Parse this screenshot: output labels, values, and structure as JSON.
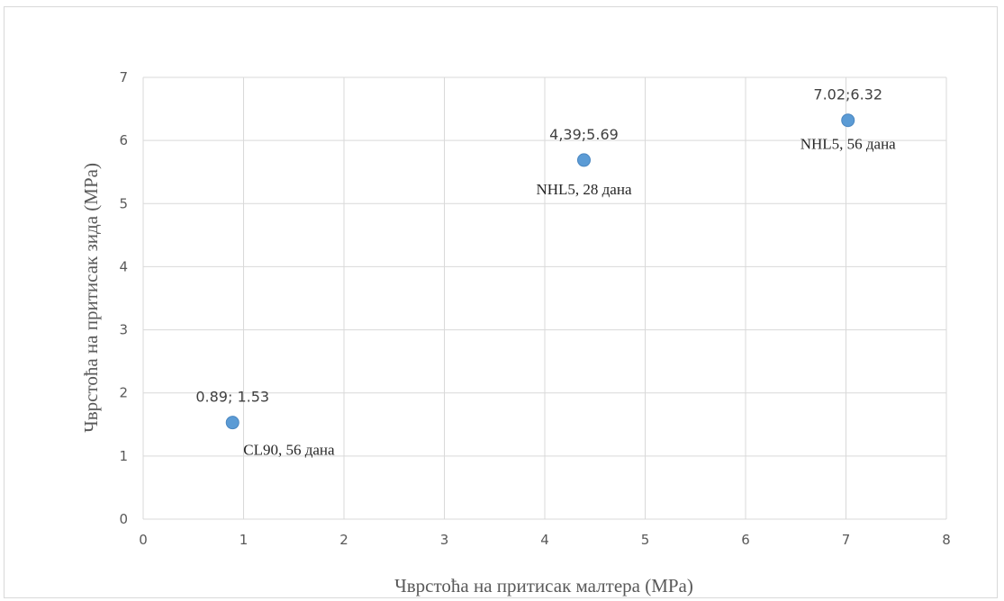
{
  "chart_data": {
    "type": "scatter",
    "title": "",
    "xlabel": "Чврстоћа на притисак малтера (MPa)",
    "ylabel": "Чврстоћа на притисак зида (MPa)",
    "xlim": [
      0,
      8
    ],
    "ylim": [
      0,
      7
    ],
    "x_ticks": [
      "0",
      "1",
      "2",
      "3",
      "4",
      "5",
      "6",
      "7",
      "8"
    ],
    "y_ticks": [
      "0",
      "1",
      "2",
      "3",
      "4",
      "5",
      "6",
      "7"
    ],
    "grid": true,
    "legend": "none",
    "marker_color": "#5b9bd5",
    "points": [
      {
        "x": 0.89,
        "y": 1.53,
        "data_label": "0.89; 1.53",
        "annotation": "CL90, 56 дана"
      },
      {
        "x": 4.39,
        "y": 5.69,
        "data_label": "4,39;5.69",
        "annotation": "NHL5, 28 дана"
      },
      {
        "x": 7.02,
        "y": 6.32,
        "data_label": "7.02;6.32",
        "annotation": "NHL5, 56 дана"
      }
    ]
  }
}
